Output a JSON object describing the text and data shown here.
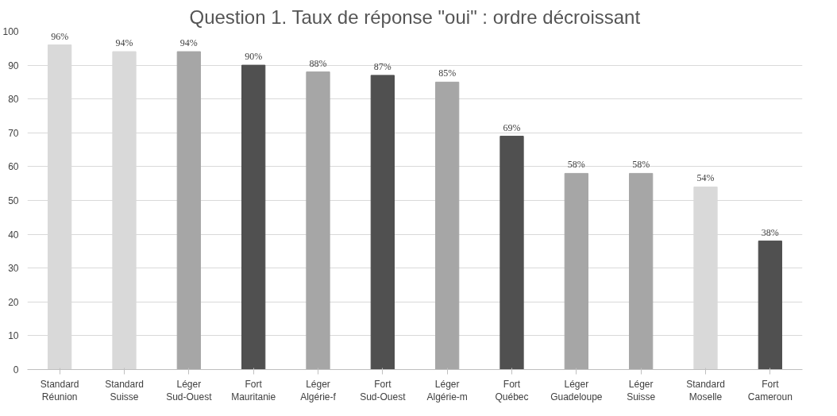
{
  "chart_data": {
    "type": "bar",
    "title": "Question 1. Taux de réponse \"oui\" : ordre décroissant",
    "categories": [
      "Standard\nRéunion",
      "Standard\nSuisse",
      "Léger\nSud-Ouest",
      "Fort\nMauritanie",
      "Léger\nAlgérie-f",
      "Fort\nSud-Ouest",
      "Léger\nAlgérie-m",
      "Fort\nQuébec",
      "Léger\nGuadeloupe",
      "Léger\nSuisse",
      "Standard\nMoselle",
      "Fort\nCameroun"
    ],
    "values": [
      96,
      94,
      94,
      90,
      88,
      87,
      85,
      69,
      58,
      58,
      54,
      38
    ],
    "value_labels": [
      "96%",
      "94%",
      "94%",
      "90%",
      "88%",
      "87%",
      "85%",
      "69%",
      "58%",
      "58%",
      "54%",
      "38%"
    ],
    "colors": [
      "#d9d9d9",
      "#d9d9d9",
      "#a6a6a6",
      "#505050",
      "#a6a6a6",
      "#505050",
      "#a6a6a6",
      "#505050",
      "#a6a6a6",
      "#a6a6a6",
      "#d9d9d9",
      "#505050"
    ],
    "ylim": [
      0,
      100
    ],
    "yticks": [
      0,
      10,
      20,
      30,
      40,
      50,
      60,
      70,
      80,
      90,
      100
    ],
    "grid": "y"
  }
}
